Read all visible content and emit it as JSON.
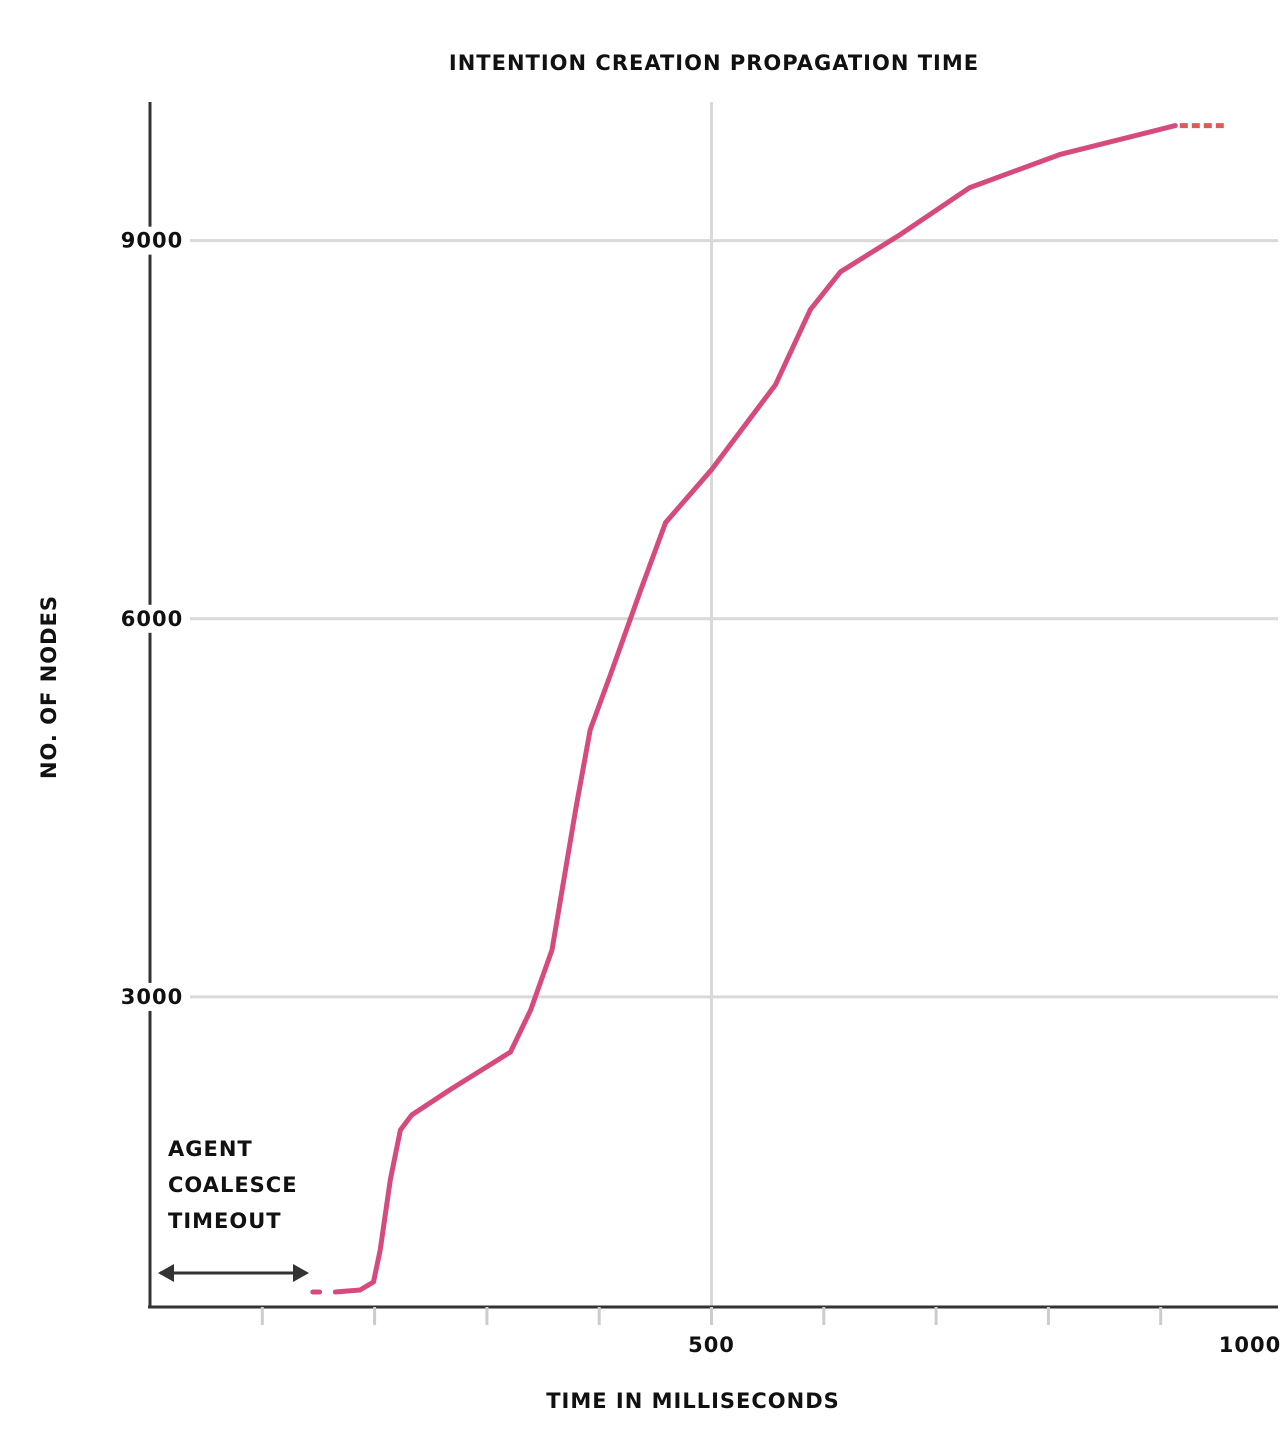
{
  "chart_data": {
    "type": "line",
    "title": "INTENTION CREATION PROPAGATION TIME",
    "x_label": "TIME IN MILLISECONDS",
    "y_label": "NO. OF NODES",
    "annotation": [
      "AGENT",
      "COALESCE",
      "TIMEOUT"
    ],
    "xlim": [
      0,
      1000
    ],
    "ylim": [
      540,
      10100
    ],
    "xticks": [
      500,
      1000
    ],
    "xminorticks": [
      100,
      200,
      300,
      400,
      500,
      600,
      700,
      800,
      900
    ],
    "yticks": [
      3000,
      6000,
      9000
    ],
    "grid": true,
    "series": [
      {
        "color": "#d64b7e",
        "dashed": false,
        "x": [
          145,
          151,
          null,
          165,
          187,
          199,
          205,
          214,
          223,
          233,
          267,
          321,
          339,
          358,
          361,
          379,
          392,
          410,
          437,
          459,
          500,
          557,
          588,
          615,
          668,
          730,
          810,
          913
        ],
        "values": [
          659,
          659,
          null,
          659,
          675,
          738,
          992,
          1548,
          1944,
          2063,
          2262,
          2563,
          2897,
          3373,
          3532,
          4484,
          5119,
          5556,
          6230,
          6762,
          7183,
          7857,
          8452,
          8754,
          9048,
          9421,
          9683,
          9913
        ]
      },
      {
        "color": "#e05a5a",
        "dashed": true,
        "x": [
          917,
          957
        ],
        "values": [
          9913,
          9913
        ]
      }
    ]
  }
}
